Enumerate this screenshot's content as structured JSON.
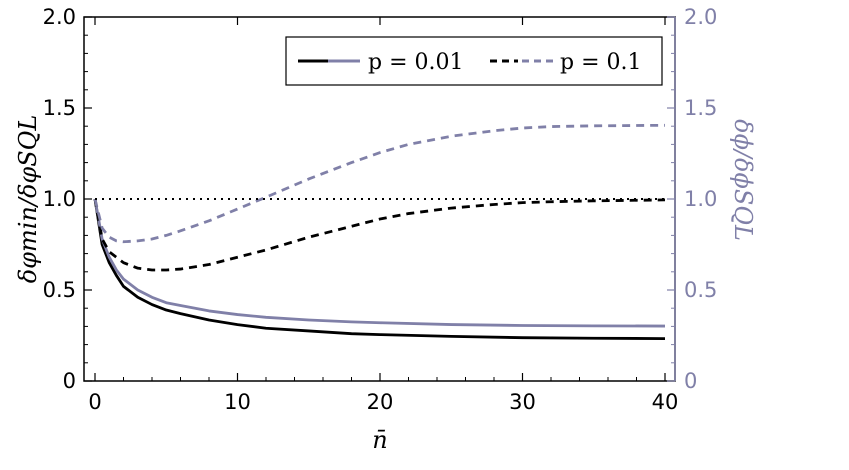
{
  "chart_data": {
    "type": "line",
    "xlabel": "n̄",
    "ylabel_left": "δφmin/δφSQL",
    "ylabel_right": "δϕ/δϕSQL",
    "xlim": [
      0,
      40
    ],
    "ylim_left": [
      0,
      2.0
    ],
    "ylim_right": [
      0,
      2.0
    ],
    "x_ticks": [
      "0",
      "10",
      "20",
      "30",
      "40"
    ],
    "y_ticks_left": [
      "0",
      "0.5",
      "1.0",
      "1.5",
      "2.0"
    ],
    "y_ticks_right": [
      "0",
      "0.5",
      "1.0",
      "1.5",
      "2.0"
    ],
    "legend_position": "top-right",
    "legend": [
      {
        "label": "p = 0.01",
        "style": "solid"
      },
      {
        "label": "p = 0.1",
        "style": "dashed"
      }
    ],
    "colors": {
      "black": "#000000",
      "gray": "#8080a8"
    },
    "series": [
      {
        "p": "0.01",
        "axis": "left",
        "color": "black",
        "dash": "solid",
        "x": [
          0,
          0.5,
          1,
          1.5,
          2,
          3,
          4,
          5,
          6,
          8,
          10,
          12,
          15,
          18,
          20,
          25,
          30,
          35,
          40
        ],
        "y": [
          1.0,
          0.75,
          0.65,
          0.58,
          0.52,
          0.46,
          0.42,
          0.39,
          0.37,
          0.335,
          0.31,
          0.29,
          0.275,
          0.26,
          0.255,
          0.245,
          0.238,
          0.235,
          0.233
        ]
      },
      {
        "p": "0.01",
        "axis": "right",
        "color": "gray",
        "dash": "solid",
        "x": [
          0,
          0.5,
          1,
          1.5,
          2,
          3,
          4,
          5,
          6,
          8,
          10,
          12,
          15,
          18,
          20,
          25,
          30,
          35,
          40
        ],
        "y": [
          1.0,
          0.78,
          0.68,
          0.61,
          0.56,
          0.5,
          0.46,
          0.43,
          0.415,
          0.385,
          0.365,
          0.35,
          0.335,
          0.325,
          0.32,
          0.31,
          0.305,
          0.303,
          0.302
        ]
      },
      {
        "p": "0.1",
        "axis": "left",
        "color": "black",
        "dash": "dashed",
        "x": [
          0,
          0.5,
          1,
          2,
          3,
          4,
          5,
          6,
          8,
          10,
          12,
          15,
          18,
          20,
          22,
          25,
          28,
          30,
          32,
          35,
          40
        ],
        "y": [
          1.0,
          0.78,
          0.71,
          0.65,
          0.62,
          0.61,
          0.61,
          0.615,
          0.64,
          0.68,
          0.72,
          0.79,
          0.85,
          0.89,
          0.92,
          0.95,
          0.97,
          0.98,
          0.985,
          0.99,
          0.995
        ]
      },
      {
        "p": "0.1",
        "axis": "right",
        "color": "gray",
        "dash": "dashed",
        "x": [
          0,
          0.5,
          1,
          1.5,
          2,
          3,
          4,
          5,
          6,
          8,
          10,
          12,
          15,
          18,
          20,
          22,
          25,
          28,
          30,
          32,
          35,
          40
        ],
        "y": [
          1.0,
          0.84,
          0.79,
          0.77,
          0.765,
          0.77,
          0.78,
          0.8,
          0.825,
          0.88,
          0.945,
          1.01,
          1.11,
          1.2,
          1.255,
          1.3,
          1.345,
          1.375,
          1.39,
          1.398,
          1.402,
          1.405
        ]
      },
      {
        "p": "",
        "axis": "left",
        "color": "black",
        "dash": "dotted",
        "x": [
          0,
          40
        ],
        "y": [
          1.0,
          1.0
        ]
      }
    ]
  }
}
